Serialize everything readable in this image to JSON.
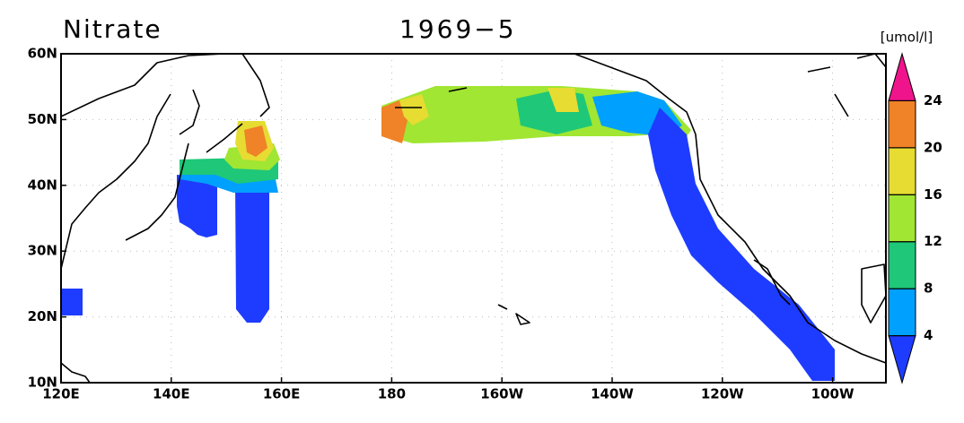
{
  "map": {
    "title": "Nitrate",
    "date": "1969−5",
    "xlim": [
      120,
      270
    ],
    "ylim": [
      10,
      60
    ],
    "xticks": [
      {
        "value": 120,
        "label": "120E"
      },
      {
        "value": 140,
        "label": "140E"
      },
      {
        "value": 160,
        "label": "160E"
      },
      180,
      {
        "value": 200,
        "label": "160W"
      },
      {
        "value": 220,
        "label": "140W"
      },
      {
        "value": 240,
        "label": "120W"
      },
      {
        "value": 260,
        "label": "100W"
      }
    ],
    "yticks": [
      {
        "value": 10,
        "label": "10N"
      },
      {
        "value": 20,
        "label": "20N"
      },
      {
        "value": 30,
        "label": "30N"
      },
      {
        "value": 40,
        "label": "40N"
      },
      {
        "value": 50,
        "label": "50N"
      },
      {
        "value": 60,
        "label": "60N"
      }
    ],
    "grid": true,
    "colorbar": {
      "label": "[umol/l]",
      "levels": [
        4,
        8,
        12,
        16,
        20,
        24
      ],
      "colors": [
        "#1e3cff",
        "#00a0ff",
        "#1ec878",
        "#a0e632",
        "#e6dc32",
        "#f08228",
        "#f0148c"
      ]
    }
  }
}
